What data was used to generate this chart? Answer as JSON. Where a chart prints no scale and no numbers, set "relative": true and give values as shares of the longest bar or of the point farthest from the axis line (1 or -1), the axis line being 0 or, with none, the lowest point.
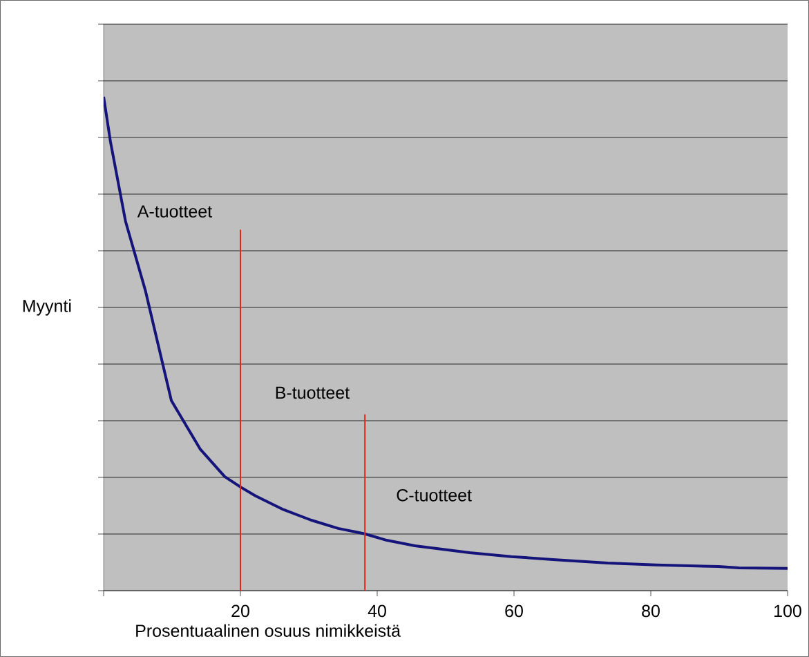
{
  "chart_data": {
    "type": "line",
    "relative": true,
    "xlabel": "Prosentuaalinen osuus nimikkeistä",
    "ylabel": "Myynti",
    "xlim": [
      0,
      100
    ],
    "xticks": [
      {
        "value": 0,
        "label": null
      },
      20,
      40,
      60,
      80,
      100
    ],
    "grid": "y",
    "series": [
      {
        "color": "#14147a",
        "x": [
          0,
          1,
          3.2,
          6.1,
          9.9,
          14.1,
          17.7,
          20,
          22.2,
          26.3,
          30.3,
          34.3,
          38.2,
          41.4,
          45.5,
          53.5,
          59.6,
          65.7,
          73.7,
          80.8,
          89.9,
          92.9,
          100
        ],
        "values": [
          1.0,
          0.909,
          0.748,
          0.608,
          0.385,
          0.287,
          0.231,
          0.21,
          0.192,
          0.164,
          0.143,
          0.126,
          0.115,
          0.102,
          0.091,
          0.077,
          0.069,
          0.063,
          0.056,
          0.052,
          0.049,
          0.046,
          0.045
        ]
      },
      {
        "color": "#e8231a",
        "x": [
          20,
          20
        ],
        "values": [
          0,
          0.731
        ]
      },
      {
        "color": "#e8231a",
        "x": [
          38.2,
          38.2
        ],
        "values": [
          0,
          0.357
        ]
      }
    ],
    "annotations": [
      "A-tuotteet",
      "B-tuotteet",
      "C-tuotteet"
    ]
  }
}
